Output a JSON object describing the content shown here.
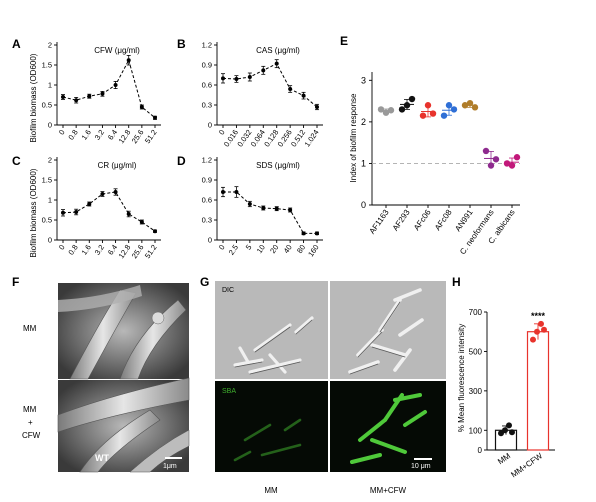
{
  "figure": {
    "panel_labels": [
      "A",
      "B",
      "C",
      "D",
      "E",
      "F",
      "G",
      "H"
    ],
    "shared_ylabel": "Biofilm biomass (OD600)",
    "f_row_labels": [
      "MM",
      "MM",
      "+",
      "CFW"
    ],
    "f_annotations": {
      "strain": "WT",
      "scalebar": "1μm"
    },
    "g_row_labels": [
      "DIC",
      "SBA"
    ],
    "g_col_labels": [
      "MM",
      "MM+CFW"
    ],
    "g_scalebar": "10 μm",
    "colors": {
      "dic_bg": "#b9b9b9",
      "sba_bg": "#050a05",
      "sba_green": "#3fae2e",
      "h_red": "#e8332c"
    }
  },
  "chart_data": [
    {
      "panel": "A",
      "type": "line",
      "title": "CFW (μg/ml)",
      "categories": [
        "0",
        "0.8",
        "1.6",
        "3.2",
        "6.4",
        "12.8",
        "25.6",
        "51.2"
      ],
      "values": [
        0.7,
        0.62,
        0.72,
        0.78,
        1.0,
        1.62,
        0.45,
        0.18
      ],
      "errors": [
        0.06,
        0.07,
        0.05,
        0.06,
        0.09,
        0.12,
        0.05,
        0.04
      ],
      "ylim": [
        0,
        2
      ],
      "yticks": [
        "0",
        "0.5",
        "1",
        "1.5",
        "2"
      ],
      "ytick_values": [
        0,
        0.5,
        1,
        1.5,
        2
      ]
    },
    {
      "panel": "B",
      "type": "line",
      "title": "CAS (μg/ml)",
      "categories": [
        "0",
        "0.016",
        "0.032",
        "0.064",
        "0.128",
        "0.256",
        "0.512",
        "1.024"
      ],
      "values": [
        0.7,
        0.69,
        0.72,
        0.82,
        0.92,
        0.54,
        0.44,
        0.27
      ],
      "errors": [
        0.07,
        0.05,
        0.06,
        0.06,
        0.06,
        0.05,
        0.05,
        0.04
      ],
      "ylim": [
        0,
        1.2
      ],
      "yticks": [
        "0",
        "0.3",
        "0.6",
        "0.9",
        "1.2"
      ],
      "ytick_values": [
        0,
        0.3,
        0.6,
        0.9,
        1.2
      ]
    },
    {
      "panel": "C",
      "type": "line",
      "title": "CR (μg/ml)",
      "categories": [
        "0",
        "0.8",
        "1.6",
        "3.2",
        "6.4",
        "12.8",
        "25.6",
        "51.2"
      ],
      "values": [
        0.68,
        0.7,
        0.9,
        1.15,
        1.2,
        0.65,
        0.45,
        0.22
      ],
      "errors": [
        0.08,
        0.07,
        0.05,
        0.06,
        0.08,
        0.07,
        0.05,
        0.03
      ],
      "ylim": [
        0,
        2
      ],
      "yticks": [
        "0",
        "0.5",
        "1",
        "1.5",
        "2"
      ],
      "ytick_values": [
        0,
        0.5,
        1,
        1.5,
        2
      ]
    },
    {
      "panel": "D",
      "type": "line",
      "title": "SDS (μg/ml)",
      "categories": [
        "0",
        "2.5",
        "5",
        "10",
        "20",
        "40",
        "80",
        "160"
      ],
      "values": [
        0.72,
        0.72,
        0.54,
        0.48,
        0.47,
        0.45,
        0.1,
        0.1
      ],
      "errors": [
        0.07,
        0.08,
        0.04,
        0.03,
        0.03,
        0.03,
        0.02,
        0.02
      ],
      "ylim": [
        0,
        1.2
      ],
      "yticks": [
        "0",
        "0.3",
        "0.6",
        "0.9",
        "1.2"
      ],
      "ytick_values": [
        0,
        0.3,
        0.6,
        0.9,
        1.2
      ]
    },
    {
      "panel": "E",
      "type": "scatter",
      "ylabel": "Index of biofilm response",
      "categories": [
        "AF1163",
        "AF293",
        "AFc06",
        "AFc08",
        "AN991",
        "C. neoformans",
        "C. albicans"
      ],
      "colors": [
        "#999999",
        "#111111",
        "#e8332c",
        "#2f6fd6",
        "#b07d2a",
        "#8e2a8e",
        "#c2187a"
      ],
      "points": [
        [
          2.3,
          2.22,
          2.28
        ],
        [
          2.3,
          2.4,
          2.55
        ],
        [
          2.15,
          2.4,
          2.2
        ],
        [
          2.15,
          2.4,
          2.3
        ],
        [
          2.4,
          2.45,
          2.35
        ],
        [
          1.3,
          0.95,
          1.1
        ],
        [
          1.0,
          0.95,
          1.15
        ]
      ],
      "means": [
        2.27,
        2.42,
        2.25,
        2.28,
        2.4,
        1.12,
        1.03
      ],
      "errors": [
        0.04,
        0.12,
        0.13,
        0.12,
        0.05,
        0.17,
        0.1
      ],
      "reference_line": 1,
      "ylim": [
        0,
        3.2
      ],
      "yticks": [
        "0",
        "1",
        "2",
        "3"
      ],
      "ytick_values": [
        0,
        1,
        2,
        3
      ]
    },
    {
      "panel": "H",
      "type": "bar",
      "ylabel": "% Mean fluorescence intensity",
      "categories": [
        "MM",
        "MM+CFW"
      ],
      "values": [
        100,
        600
      ],
      "errors": [
        22,
        40
      ],
      "points": [
        [
          85,
          100,
          125,
          90
        ],
        [
          560,
          600,
          640,
          610
        ]
      ],
      "bar_colors": [
        "#111111",
        "#e8332c"
      ],
      "significance": "****",
      "ylim": [
        0,
        700
      ],
      "yticks": [
        "0",
        "100",
        "300",
        "500",
        "700"
      ],
      "ytick_values": [
        0,
        100,
        300,
        500,
        700
      ]
    }
  ]
}
